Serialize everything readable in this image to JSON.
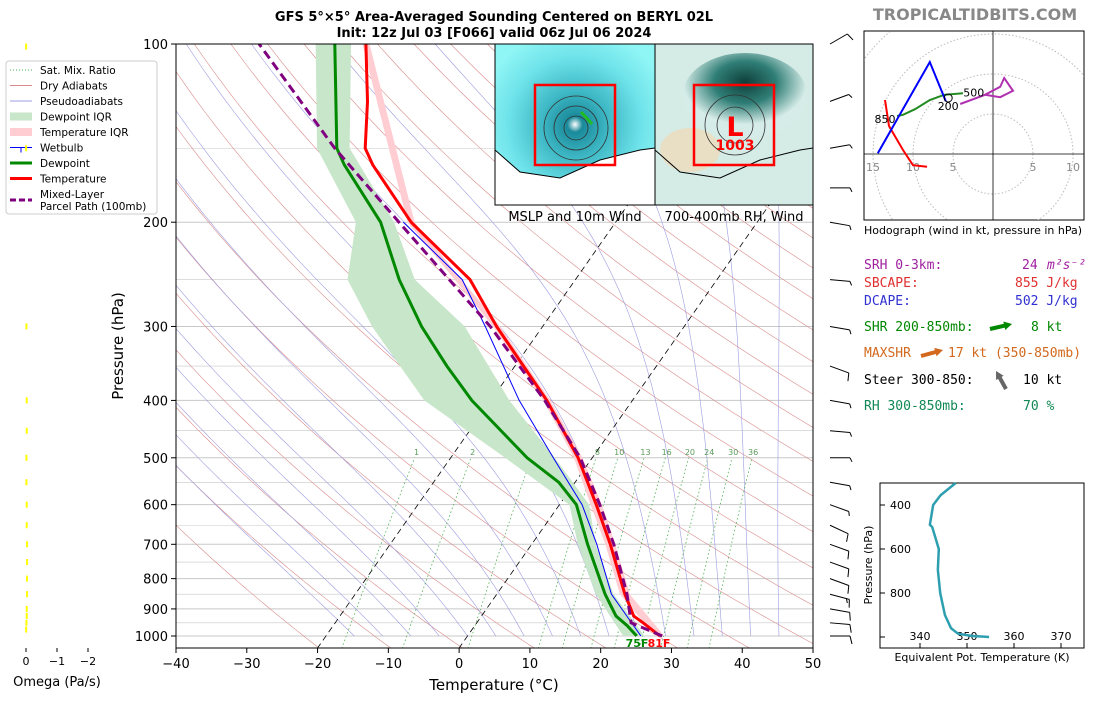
{
  "title": {
    "line1": "GFS 5°×5° Area-Averaged Sounding Centered on BERYL 02L",
    "line2": "Init: 12z Jul 03 [F066] valid 06z Jul 06 2024",
    "watermark": "TROPICALTIDBITS.COM"
  },
  "legend": {
    "items": [
      {
        "label": "Sat. Mix. Ratio",
        "style": "dotted",
        "color": "#4caf50"
      },
      {
        "label": "Dry Adiabats",
        "style": "thin",
        "color": "#d98c8c"
      },
      {
        "label": "Pseudoadiabats",
        "style": "thin",
        "color": "#9c9ce0"
      },
      {
        "label": "Dewpoint IQR",
        "style": "band",
        "color": "#c8e6c9"
      },
      {
        "label": "Temperature IQR",
        "style": "band",
        "color": "#ffcdd2"
      },
      {
        "label": "Wetbulb",
        "style": "wetbulb",
        "color": "#0000ff"
      },
      {
        "label": "Dewpoint",
        "style": "thick",
        "color": "#008800"
      },
      {
        "label": "Temperature",
        "style": "thick",
        "color": "#ff0000"
      },
      {
        "label": "Mixed-Layer",
        "label2": "Parcel Path (100mb)",
        "style": "dashed",
        "color": "#800080"
      }
    ]
  },
  "chart_data": [
    {
      "type": "skew-t",
      "xlabel": "Temperature (°C)",
      "ylabel": "Pressure (hPa)",
      "xlim": [
        -40,
        50
      ],
      "ylim": [
        1050,
        100
      ],
      "y_scale": "log",
      "xticks": [
        -40,
        -30,
        -20,
        -10,
        0,
        10,
        20,
        30,
        40,
        50
      ],
      "yticks": [
        100,
        200,
        300,
        400,
        500,
        600,
        700,
        800,
        900,
        1000
      ],
      "grid": true,
      "legend_position": "left",
      "colors": {
        "temperature": "#ff0000",
        "dewpoint": "#008800",
        "wetbulb": "#0000ff",
        "parcel": "#800080",
        "dewpoint_iqr": "#c8e6c9",
        "temperature_iqr": "#ffcdd2"
      },
      "temperature": [
        [
          1000,
          27.2
        ],
        [
          950,
          23.5
        ],
        [
          925,
          21.5
        ],
        [
          850,
          18.1
        ],
        [
          700,
          11.1
        ],
        [
          600,
          5.2
        ],
        [
          500,
          -2
        ],
        [
          400,
          -12.1
        ],
        [
          300,
          -26.5
        ],
        [
          250,
          -34.9
        ],
        [
          200,
          -48.9
        ],
        [
          160,
          -60
        ],
        [
          150,
          -62.7
        ],
        [
          125,
          -67
        ],
        [
          100,
          -72.9
        ]
      ],
      "dewpoint": [
        [
          1000,
          23.9
        ],
        [
          960,
          21.5
        ],
        [
          925,
          19
        ],
        [
          850,
          15.3
        ],
        [
          700,
          7.9
        ],
        [
          600,
          2.4
        ],
        [
          550,
          -2.3
        ],
        [
          500,
          -9.2
        ],
        [
          400,
          -22.7
        ],
        [
          350,
          -29.6
        ],
        [
          300,
          -37.1
        ],
        [
          250,
          -44.9
        ],
        [
          200,
          -53.2
        ],
        [
          160,
          -64
        ],
        [
          150,
          -66.7
        ],
        [
          100,
          -77.3
        ]
      ],
      "wetbulb": [
        [
          1000,
          24.5
        ],
        [
          850,
          16.2
        ],
        [
          700,
          9.2
        ],
        [
          600,
          3.2
        ],
        [
          500,
          -5.5
        ],
        [
          400,
          -16
        ],
        [
          300,
          -28.1
        ],
        [
          250,
          -36
        ],
        [
          200,
          -50
        ]
      ],
      "parcel_path": [
        [
          1000,
          27.5
        ],
        [
          950,
          21.8
        ],
        [
          850,
          18.4
        ],
        [
          700,
          11.6
        ],
        [
          600,
          5.7
        ],
        [
          500,
          -1.7
        ],
        [
          400,
          -12.4
        ],
        [
          300,
          -27.4
        ],
        [
          200,
          -50.6
        ],
        [
          150,
          -67
        ],
        [
          100,
          -88
        ]
      ],
      "dewpoint_iqr": [
        [
          100,
          -80,
          -75
        ],
        [
          150,
          -69.5,
          -64.9
        ],
        [
          200,
          -56.7,
          -51.3
        ],
        [
          250,
          -52.2,
          -42.7
        ],
        [
          300,
          -44.1,
          -31
        ],
        [
          400,
          -29.4,
          -17.4
        ],
        [
          500,
          -12.3,
          -5.3
        ],
        [
          600,
          1.4,
          4.2
        ],
        [
          700,
          6.5,
          9
        ],
        [
          850,
          14,
          16.5
        ],
        [
          1000,
          22,
          25
        ]
      ],
      "temperature_iqr": [
        [
          1000,
          26.5,
          27.8
        ],
        [
          850,
          17.4,
          18.8
        ],
        [
          700,
          10.4,
          11.8
        ],
        [
          600,
          4.4,
          6
        ],
        [
          500,
          -2.6,
          -1.4
        ],
        [
          400,
          -12.6,
          -11.6
        ],
        [
          300,
          -27,
          -26
        ],
        [
          200,
          -49.4,
          -48.4
        ],
        [
          100,
          -73.4,
          -72.4
        ]
      ],
      "isotherms_highlight": [
        -20,
        0
      ],
      "mixing_ratio_labels": [
        "1",
        "2",
        "4",
        "8",
        "10",
        "13",
        "16",
        "20",
        "24",
        "30",
        "36"
      ],
      "winds": [
        [
          100,
          8,
          60
        ],
        [
          125,
          6,
          70
        ],
        [
          150,
          5,
          80
        ],
        [
          175,
          6,
          90
        ],
        [
          200,
          7,
          100
        ],
        [
          250,
          6,
          95
        ],
        [
          300,
          7,
          100
        ],
        [
          350,
          8,
          110
        ],
        [
          400,
          7,
          100
        ],
        [
          450,
          6,
          95
        ],
        [
          500,
          5,
          90
        ],
        [
          550,
          6,
          100
        ],
        [
          600,
          7,
          110
        ],
        [
          650,
          8,
          115
        ],
        [
          700,
          9,
          110
        ],
        [
          750,
          10,
          110
        ],
        [
          800,
          12,
          110
        ],
        [
          850,
          13,
          105
        ],
        [
          900,
          12,
          100
        ],
        [
          950,
          10,
          95
        ],
        [
          1000,
          8,
          90
        ]
      ]
    },
    {
      "type": "line",
      "title": "Hodograph (wind in kt, pressure in hPa)",
      "ring_labels": [
        "15",
        "10",
        "5",
        "5",
        "10"
      ],
      "segments": [
        {
          "color": "#ff0000",
          "points": [
            [
              -13.5,
              6.75
            ],
            [
              -13,
              3.5
            ],
            [
              -11.25,
              0.5
            ],
            [
              -10,
              -1.4
            ],
            [
              -8.25,
              -1.6
            ]
          ]
        },
        {
          "color": "#228b22",
          "points": [
            [
              -12,
              4.75
            ],
            [
              -11.25,
              4.9
            ],
            [
              -9.75,
              5.6
            ],
            [
              -7.9,
              6.75
            ],
            [
              -6.1,
              7.4
            ],
            [
              -3.75,
              7.6
            ]
          ]
        },
        {
          "color": "#0000ff",
          "points": [
            [
              -14.4,
              0.1
            ],
            [
              -7.9,
              11.5
            ],
            [
              -5.9,
              6.6
            ]
          ]
        },
        {
          "color": "#b030b0",
          "points": [
            [
              -4.1,
              6.25
            ],
            [
              -1,
              7.4
            ],
            [
              0.9,
              8.4
            ],
            [
              1.4,
              9.5
            ],
            [
              2.5,
              7.9
            ],
            [
              0.9,
              7.1
            ],
            [
              -1,
              7.4
            ]
          ]
        }
      ],
      "labels": [
        {
          "text": "850",
          "u": -13.5,
          "v": 4.4
        },
        {
          "text": "500",
          "u": -2.4,
          "v": 7.7
        },
        {
          "text": "200",
          "u": -5.6,
          "v": 6.0
        }
      ],
      "storm_motion": [
        -5.6,
        7.0
      ]
    },
    {
      "type": "line",
      "xlabel": "Equivalent Pot. Temperature (K)",
      "ylabel": "Pressure (hPa)",
      "xlim": [
        331.5,
        375
      ],
      "ylim": [
        1010,
        300
      ],
      "xticks": [
        340,
        350,
        360,
        370
      ],
      "yticks": [
        400,
        600,
        800,
        1000
      ],
      "ytick_labels": [
        "400",
        "600",
        "800",
        ""
      ],
      "color": "#2e9fb0",
      "points": [
        [
          300,
          347.6
        ],
        [
          355,
          344.4
        ],
        [
          400,
          342.8
        ],
        [
          490,
          342.1
        ],
        [
          500,
          342.6
        ],
        [
          600,
          344
        ],
        [
          695,
          343.8
        ],
        [
          800,
          344.3
        ],
        [
          900,
          345.3
        ],
        [
          960,
          346.6
        ],
        [
          985,
          348.1
        ],
        [
          995,
          350.9
        ],
        [
          1000,
          354.7
        ]
      ]
    }
  ],
  "omega": {
    "xlabel": "Omega (Pa/s)",
    "xticks": [
      "0",
      "−1",
      "−2"
    ],
    "color": "#ffff00",
    "values": [
      [
        101,
        -0.02
      ],
      [
        150,
        -0.02
      ],
      [
        300,
        -0.03
      ],
      [
        400,
        -0.04
      ],
      [
        450,
        -0.04
      ],
      [
        500,
        -0.03
      ],
      [
        550,
        -0.03
      ],
      [
        600,
        -0.04
      ],
      [
        650,
        -0.04
      ],
      [
        700,
        -0.05
      ],
      [
        750,
        -0.05
      ],
      [
        800,
        -0.05
      ],
      [
        850,
        -0.05
      ],
      [
        900,
        -0.04
      ],
      [
        925,
        -0.04
      ],
      [
        950,
        -0.03
      ],
      [
        975,
        -0.02
      ]
    ]
  },
  "maps": {
    "left_caption": "MSLP and 10m Wind",
    "right_caption": "700-400mb RH, Wind",
    "low_letter": "L",
    "low_pressure": "1003",
    "box_color": "#ff0000"
  },
  "stats": {
    "srh": {
      "label": "SRH 0-3km:",
      "value": "24",
      "unit": "m²s⁻²",
      "color": "#a020a0"
    },
    "sbcape": {
      "label": "SBCAPE:",
      "value": "855 J/kg",
      "color": "#e03030"
    },
    "dcape": {
      "label": "DCAPE:",
      "value": "502 J/kg",
      "color": "#3030d0"
    },
    "shr": {
      "label": "SHR 200-850mb:",
      "value": "8 kt",
      "color": "#008800",
      "arrow": "arrow-east-icon"
    },
    "maxshr": {
      "label": "MAXSHR",
      "value": "17 kt (350-850mb)",
      "color": "#d2691e",
      "arrow": "arrow-northeast-icon"
    },
    "steer": {
      "label": "Steer 300-850:",
      "value": "10 kt",
      "color": "#000000",
      "arrow": "arrow-northwest-icon"
    },
    "rh": {
      "label": "RH 300-850mb:",
      "value": "70 %",
      "color": "#118855"
    }
  }
}
